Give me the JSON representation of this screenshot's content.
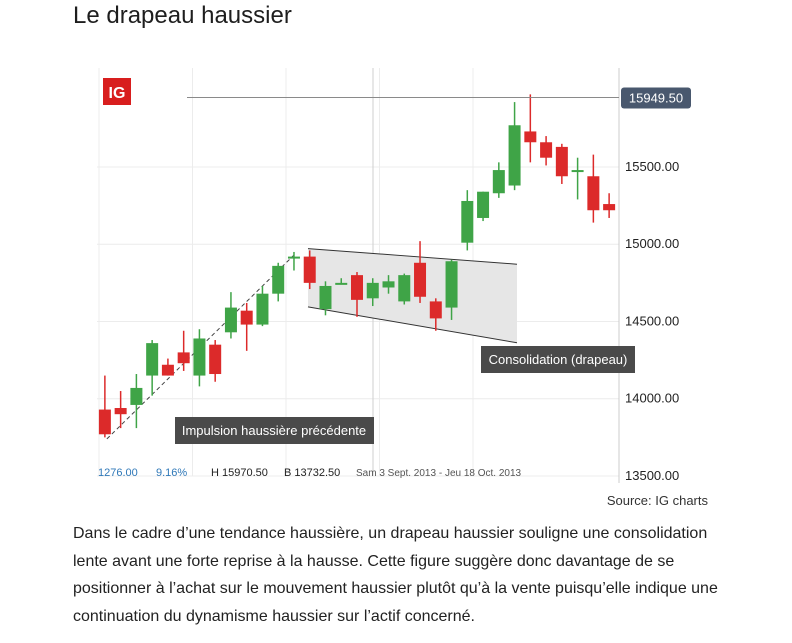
{
  "page": {
    "title": "Le drapeau haussier",
    "source": "Source: IG charts",
    "paragraph": "Dans le cadre d’une tendance haussière, un drapeau haussier souligne une consolidation lente avant une forte reprise à la hausse. Cette figure suggère donc davantage de se positionner à l’achat sur le mouvement haussier plutôt qu’à la vente puisqu’elle indique une continuation du dynamisme haussier sur l’actif concerné."
  },
  "chart_ui": {
    "logo": "IG",
    "stats": {
      "change": "1276.00",
      "change_pct": "9.16%",
      "high": "H 15970.50",
      "low": "B 13732.50",
      "period": "Sam 3 Sept. 2013 - Jeu 18 Oct. 2013"
    },
    "last_price_label": "15949.50",
    "annotations": {
      "impulse": "Impulsion haussière précédente",
      "flag": "Consolidation (drapeau)"
    }
  },
  "colors": {
    "up": "#3fa447",
    "down": "#dc2a2a",
    "label_bg": "#4a4a4a",
    "price_tag_bg": "#49586e",
    "logo_bg": "#d81e1e",
    "flag_fill": "#e6e6e6"
  },
  "chart_data": {
    "type": "candlestick",
    "ylim": [
      13500,
      16050
    ],
    "yticks": [
      13500,
      14000,
      14500,
      15000,
      15500
    ],
    "ytick_labels": [
      "13500.00",
      "14000.00",
      "14500.00",
      "15000.00",
      "15500.00"
    ],
    "last_price": 15949.5,
    "candles": [
      {
        "o": 13930,
        "h": 14150,
        "l": 13750,
        "c": 13770
      },
      {
        "o": 13940,
        "h": 14050,
        "l": 13810,
        "c": 13900
      },
      {
        "o": 13960,
        "h": 14160,
        "l": 13810,
        "c": 14070
      },
      {
        "o": 14150,
        "h": 14380,
        "l": 14020,
        "c": 14360
      },
      {
        "o": 14220,
        "h": 14260,
        "l": 14150,
        "c": 14150
      },
      {
        "o": 14300,
        "h": 14440,
        "l": 14180,
        "c": 14230
      },
      {
        "o": 14150,
        "h": 14450,
        "l": 14080,
        "c": 14390
      },
      {
        "o": 14350,
        "h": 14380,
        "l": 14110,
        "c": 14160
      },
      {
        "o": 14430,
        "h": 14690,
        "l": 14390,
        "c": 14590
      },
      {
        "o": 14570,
        "h": 14620,
        "l": 14310,
        "c": 14480
      },
      {
        "o": 14480,
        "h": 14730,
        "l": 14470,
        "c": 14680
      },
      {
        "o": 14680,
        "h": 14880,
        "l": 14630,
        "c": 14860
      },
      {
        "o": 14910,
        "h": 14950,
        "l": 14830,
        "c": 14920
      },
      {
        "o": 14920,
        "h": 14960,
        "l": 14710,
        "c": 14750
      },
      {
        "o": 14580,
        "h": 14760,
        "l": 14540,
        "c": 14730
      },
      {
        "o": 14740,
        "h": 14780,
        "l": 14740,
        "c": 14750
      },
      {
        "o": 14800,
        "h": 14820,
        "l": 14530,
        "c": 14640
      },
      {
        "o": 14650,
        "h": 14780,
        "l": 14600,
        "c": 14750
      },
      {
        "o": 14720,
        "h": 14800,
        "l": 14680,
        "c": 14760
      },
      {
        "o": 14630,
        "h": 14810,
        "l": 14610,
        "c": 14800
      },
      {
        "o": 14880,
        "h": 15020,
        "l": 14620,
        "c": 14660
      },
      {
        "o": 14630,
        "h": 14650,
        "l": 14440,
        "c": 14520
      },
      {
        "o": 14590,
        "h": 14900,
        "l": 14510,
        "c": 14890
      },
      {
        "o": 15010,
        "h": 15350,
        "l": 14960,
        "c": 15280
      },
      {
        "o": 15170,
        "h": 15340,
        "l": 15150,
        "c": 15340
      },
      {
        "o": 15330,
        "h": 15530,
        "l": 15300,
        "c": 15480
      },
      {
        "o": 15380,
        "h": 15920,
        "l": 15350,
        "c": 15770
      },
      {
        "o": 15730,
        "h": 15970,
        "l": 15530,
        "c": 15660
      },
      {
        "o": 15660,
        "h": 15700,
        "l": 15510,
        "c": 15560
      },
      {
        "o": 15630,
        "h": 15650,
        "l": 15390,
        "c": 15440
      },
      {
        "o": 15470,
        "h": 15560,
        "l": 15290,
        "c": 15480
      },
      {
        "o": 15440,
        "h": 15580,
        "l": 15140,
        "c": 15220
      },
      {
        "o": 15260,
        "h": 15330,
        "l": 15170,
        "c": 15220
      }
    ]
  }
}
